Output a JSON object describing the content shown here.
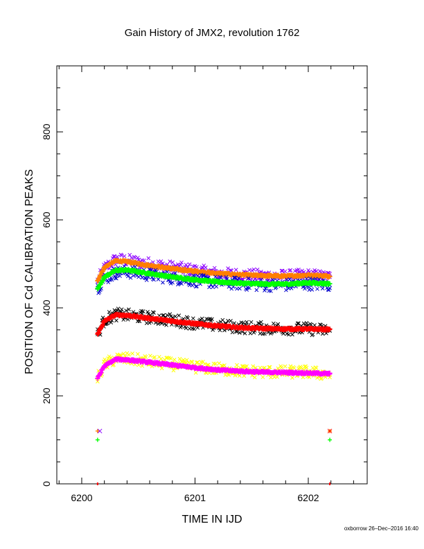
{
  "chart_data": {
    "type": "scatter",
    "title": "Gain History of JMX2, revolution 1762",
    "xlabel": "TIME IN IJD",
    "ylabel": "POSITION OF Cd CALIBRATION PEAKS",
    "xlim": [
      6199.78,
      6202.52
    ],
    "ylim": [
      0,
      950
    ],
    "xticks": [
      "6200",
      "6201",
      "6202"
    ],
    "yticks": [
      "0",
      "200",
      "400",
      "600",
      "800"
    ],
    "grid": false,
    "legend": "none",
    "x_range": [
      6200.14,
      6202.19
    ],
    "series": [
      {
        "color": "#8b00ff",
        "marker": "x",
        "kind": "scatter",
        "x": [
          6200.14,
          6200.2,
          6200.3,
          6200.4,
          6200.6,
          6200.8,
          6201.0,
          6201.2,
          6201.4,
          6201.6,
          6201.8,
          6202.0,
          6202.19
        ],
        "y": [
          460,
          490,
          510,
          508,
          500,
          492,
          485,
          478,
          475,
          473,
          472,
          474,
          470
        ]
      },
      {
        "color": "#ff7f00",
        "marker": "+",
        "kind": "fit",
        "x": [
          6200.14,
          6200.2,
          6200.3,
          6200.4,
          6200.6,
          6200.8,
          6201.0,
          6201.2,
          6201.4,
          6201.6,
          6201.8,
          6202.0,
          6202.19
        ],
        "y": [
          462,
          492,
          507,
          505,
          496,
          489,
          483,
          478,
          475,
          473,
          472,
          474,
          472
        ]
      },
      {
        "color": "#0000cd",
        "marker": "x",
        "kind": "scatter",
        "x": [
          6200.14,
          6200.2,
          6200.3,
          6200.4,
          6200.6,
          6200.8,
          6201.0,
          6201.2,
          6201.4,
          6201.6,
          6201.8,
          6202.0,
          6202.19
        ],
        "y": [
          445,
          465,
          480,
          482,
          475,
          468,
          462,
          458,
          455,
          452,
          452,
          455,
          452
        ]
      },
      {
        "color": "#00ff00",
        "marker": "+",
        "kind": "fit",
        "x": [
          6200.14,
          6200.2,
          6200.3,
          6200.4,
          6200.6,
          6200.8,
          6201.0,
          6201.2,
          6201.4,
          6201.6,
          6201.8,
          6202.0,
          6202.19
        ],
        "y": [
          443,
          470,
          485,
          486,
          478,
          470,
          464,
          459,
          456,
          454,
          454,
          457,
          455
        ]
      },
      {
        "color": "#000000",
        "marker": "x",
        "kind": "scatter",
        "x": [
          6200.14,
          6200.2,
          6200.3,
          6200.4,
          6200.6,
          6200.8,
          6201.0,
          6201.2,
          6201.4,
          6201.6,
          6201.8,
          6202.0,
          6202.19
        ],
        "y": [
          340,
          372,
          385,
          383,
          378,
          372,
          365,
          360,
          356,
          354,
          353,
          352,
          348
        ]
      },
      {
        "color": "#ff0000",
        "marker": "+",
        "kind": "fit",
        "x": [
          6200.14,
          6200.2,
          6200.3,
          6200.4,
          6200.6,
          6200.8,
          6201.0,
          6201.2,
          6201.4,
          6201.6,
          6201.8,
          6202.0,
          6202.19
        ],
        "y": [
          340,
          370,
          384,
          383,
          376,
          370,
          364,
          359,
          355,
          353,
          352,
          352,
          351
        ]
      },
      {
        "color": "#ffff00",
        "marker": "x",
        "kind": "scatter",
        "x": [
          6200.14,
          6200.2,
          6200.3,
          6200.4,
          6200.6,
          6200.8,
          6201.0,
          6201.2,
          6201.4,
          6201.6,
          6201.8,
          6202.0,
          6202.19
        ],
        "y": [
          240,
          270,
          285,
          284,
          278,
          272,
          266,
          261,
          257,
          254,
          254,
          254,
          248
        ]
      },
      {
        "color": "#ff00ff",
        "marker": "+",
        "kind": "fit",
        "x": [
          6200.14,
          6200.2,
          6200.3,
          6200.4,
          6200.6,
          6200.8,
          6201.0,
          6201.2,
          6201.4,
          6201.6,
          6201.8,
          6202.0,
          6202.19
        ],
        "y": [
          240,
          268,
          283,
          282,
          276,
          270,
          264,
          259,
          256,
          254,
          253,
          252,
          250
        ]
      }
    ],
    "isolated_points": [
      {
        "x": 6200.14,
        "y": 120,
        "color": "#ff7f00",
        "marker": "+"
      },
      {
        "x": 6200.16,
        "y": 120,
        "color": "#8b00ff",
        "marker": "x"
      },
      {
        "x": 6200.14,
        "y": 100,
        "color": "#00ff00",
        "marker": "+"
      },
      {
        "x": 6202.19,
        "y": 120,
        "color": "#ff7f00",
        "marker": "+"
      },
      {
        "x": 6202.19,
        "y": 120,
        "color": "#ff0000",
        "marker": "x"
      },
      {
        "x": 6202.19,
        "y": 100,
        "color": "#00ff00",
        "marker": "+"
      }
    ]
  },
  "footer": "oxborrow 26–Dec–2016 16:40"
}
